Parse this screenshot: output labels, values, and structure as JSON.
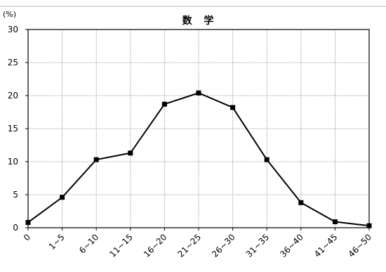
{
  "chart_data": {
    "type": "line",
    "title": "数 学",
    "ylabel": "(%)",
    "xlabel": "",
    "categories": [
      "0",
      "1~5",
      "6~10",
      "11~15",
      "16~20",
      "21~25",
      "26~30",
      "31~35",
      "36~40",
      "41~45",
      "46~50"
    ],
    "values": [
      0.8,
      4.6,
      10.3,
      11.3,
      18.7,
      20.4,
      18.2,
      10.3,
      3.8,
      0.9,
      0.3
    ],
    "ylim": [
      0,
      30
    ],
    "yticks": [
      "0",
      "5",
      "10",
      "15",
      "20",
      "25",
      "30"
    ],
    "grid": true,
    "legend": "none",
    "line_color": "#000000",
    "grid_color": "#888888"
  }
}
